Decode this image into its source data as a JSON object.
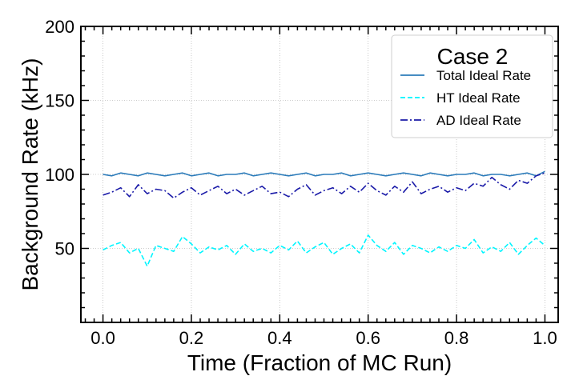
{
  "chart_data": {
    "type": "line",
    "title": "",
    "xlabel": "Time (Fraction of MC Run)",
    "ylabel": "Background Rate (kHz)",
    "xlim": [
      -0.05,
      1.03
    ],
    "ylim": [
      0,
      200
    ],
    "xticks": [
      0.0,
      0.2,
      0.4,
      0.6,
      0.8,
      1.0
    ],
    "xtick_labels": [
      "0.0",
      "0.2",
      "0.4",
      "0.6",
      "0.8",
      "1.0"
    ],
    "yticks": [
      50,
      100,
      150,
      200
    ],
    "ytick_labels": [
      "50",
      "100",
      "150",
      "200"
    ],
    "grid": true,
    "legend": {
      "title": "Case 2",
      "placement": "top-right",
      "entries": [
        "Total Ideal Rate",
        "HT Ideal Rate",
        "AD Ideal Rate"
      ]
    },
    "x": [
      0.0,
      0.02,
      0.04,
      0.06,
      0.08,
      0.1,
      0.12,
      0.14,
      0.16,
      0.18,
      0.2,
      0.22,
      0.24,
      0.26,
      0.28,
      0.3,
      0.32,
      0.34,
      0.36,
      0.38,
      0.4,
      0.42,
      0.44,
      0.46,
      0.48,
      0.5,
      0.52,
      0.54,
      0.56,
      0.58,
      0.6,
      0.62,
      0.64,
      0.66,
      0.68,
      0.7,
      0.72,
      0.74,
      0.76,
      0.78,
      0.8,
      0.82,
      0.84,
      0.86,
      0.88,
      0.9,
      0.92,
      0.94,
      0.96,
      0.98,
      1.0
    ],
    "series": [
      {
        "name": "Total Ideal Rate",
        "color": "#2b7bba",
        "dash": "solid",
        "values": [
          100,
          99,
          101,
          100,
          99,
          101,
          100,
          99,
          100,
          101,
          99,
          100,
          101,
          99,
          100,
          100,
          101,
          99,
          100,
          101,
          100,
          99,
          100,
          101,
          99,
          100,
          100,
          101,
          99,
          100,
          101,
          100,
          99,
          100,
          101,
          100,
          99,
          101,
          100,
          99,
          100,
          100,
          101,
          99,
          100,
          100,
          99,
          100,
          101,
          99,
          102
        ]
      },
      {
        "name": "HT Ideal Rate",
        "color": "#00f5ff",
        "dash": "6,3",
        "values": [
          49,
          52,
          54,
          47,
          50,
          38,
          52,
          50,
          48,
          58,
          53,
          47,
          51,
          49,
          52,
          46,
          53,
          48,
          50,
          47,
          52,
          49,
          55,
          47,
          51,
          54,
          46,
          50,
          53,
          47,
          59,
          52,
          48,
          54,
          46,
          52,
          50,
          47,
          51,
          48,
          52,
          50,
          56,
          47,
          51,
          48,
          54,
          46,
          52,
          57,
          52
        ]
      },
      {
        "name": "AD Ideal Rate",
        "color": "#1a1aa8",
        "dash": "9,3,2,3",
        "values": [
          86,
          88,
          91,
          85,
          93,
          87,
          90,
          89,
          84,
          88,
          91,
          86,
          89,
          92,
          87,
          90,
          86,
          89,
          92,
          87,
          88,
          85,
          90,
          93,
          86,
          89,
          91,
          87,
          92,
          88,
          94,
          89,
          86,
          92,
          88,
          95,
          87,
          90,
          92,
          88,
          91,
          89,
          94,
          92,
          98,
          93,
          90,
          96,
          94,
          99,
          101
        ]
      }
    ]
  }
}
